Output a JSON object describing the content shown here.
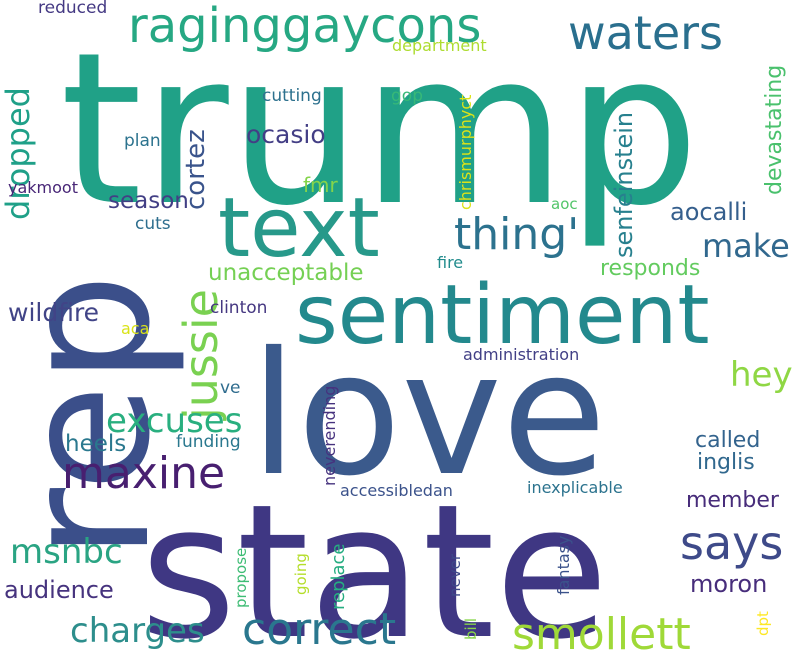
{
  "words": [
    {
      "id": "trump",
      "text": "trump",
      "color": "#20a187"
    },
    {
      "id": "love",
      "text": "love",
      "color": "#3b5a8c"
    },
    {
      "id": "state",
      "text": "state",
      "color": "#3f3783"
    },
    {
      "id": "rep",
      "text": "rep",
      "color": "#3b4f8a"
    },
    {
      "id": "sentiment",
      "text": "sentiment",
      "color": "#23898d"
    },
    {
      "id": "text",
      "text": "text",
      "color": "#27998a"
    },
    {
      "id": "raginggaycons",
      "text": "raginggaycons",
      "color": "#26a883"
    },
    {
      "id": "waters",
      "text": "waters",
      "color": "#2a6f8e"
    },
    {
      "id": "smollett",
      "text": "smollett",
      "color": "#9fd938"
    },
    {
      "id": "correct",
      "text": "correct",
      "color": "#2a778e"
    },
    {
      "id": "says",
      "text": "says",
      "color": "#3e4a89"
    },
    {
      "id": "maxine",
      "text": "maxine",
      "color": "#481f70"
    },
    {
      "id": "jussie",
      "text": "jussie",
      "color": "#7ad151"
    },
    {
      "id": "thing",
      "text": "thing'",
      "color": "#2c728e"
    },
    {
      "id": "dropped",
      "text": "dropped",
      "color": "#1fa088"
    },
    {
      "id": "excuses",
      "text": "excuses",
      "color": "#29af7f"
    },
    {
      "id": "charges",
      "text": "charges",
      "color": "#2d8e8c"
    },
    {
      "id": "msnbc",
      "text": "msnbc",
      "color": "#2aa483"
    },
    {
      "id": "make",
      "text": "make",
      "color": "#31688e"
    },
    {
      "id": "hey",
      "text": "hey",
      "color": "#8fd744"
    },
    {
      "id": "senfeinstein",
      "text": "senfeinstein",
      "color": "#27808e"
    },
    {
      "id": "cortez",
      "text": "cortez",
      "color": "#3a548c"
    },
    {
      "id": "devastating",
      "text": "devastating",
      "color": "#4ac16d"
    },
    {
      "id": "ocasio",
      "text": "ocasio",
      "color": "#433e85"
    },
    {
      "id": "aocalli",
      "text": "aocalli",
      "color": "#355f8d"
    },
    {
      "id": "unacceptable",
      "text": "unacceptable",
      "color": "#75d054"
    },
    {
      "id": "wildfire",
      "text": "wildfire",
      "color": "#414487"
    },
    {
      "id": "audience",
      "text": "audience",
      "color": "#46337e"
    },
    {
      "id": "moron",
      "text": "moron",
      "color": "#472d7b"
    },
    {
      "id": "called",
      "text": "called",
      "color": "#33638d"
    },
    {
      "id": "inglis",
      "text": "inglis",
      "color": "#31688e"
    },
    {
      "id": "member",
      "text": "member",
      "color": "#472c7a"
    },
    {
      "id": "responds",
      "text": "responds",
      "color": "#63cb5f"
    },
    {
      "id": "heels",
      "text": "heels",
      "color": "#2a788e"
    },
    {
      "id": "season",
      "text": "season",
      "color": "#423f85"
    },
    {
      "id": "fmr",
      "text": "fmr",
      "color": "#84d44b"
    },
    {
      "id": "yakmoot",
      "text": "yakmoot",
      "color": "#482677"
    },
    {
      "id": "cutting",
      "text": "cutting",
      "color": "#2d718e"
    },
    {
      "id": "gop",
      "text": "gop",
      "color": "#37b878"
    },
    {
      "id": "plan",
      "text": "plan",
      "color": "#2c738e"
    },
    {
      "id": "reduced",
      "text": "reduced",
      "color": "#443983"
    },
    {
      "id": "department",
      "text": "department",
      "color": "#addc30"
    },
    {
      "id": "chrismurphyct",
      "text": "chrismurphyct",
      "color": "#dde318"
    },
    {
      "id": "aoc",
      "text": "aoc",
      "color": "#52c569"
    },
    {
      "id": "cuts",
      "text": "cuts",
      "color": "#2e6e8e"
    },
    {
      "id": "fire",
      "text": "fire",
      "color": "#228c8d"
    },
    {
      "id": "clinton",
      "text": "clinton",
      "color": "#453781"
    },
    {
      "id": "aca",
      "text": "aca",
      "color": "#dae319"
    },
    {
      "id": "administration",
      "text": "administration",
      "color": "#424086"
    },
    {
      "id": "ve",
      "text": "ve",
      "color": "#2f6c8e"
    },
    {
      "id": "funding",
      "text": "funding",
      "color": "#2a788e"
    },
    {
      "id": "replace",
      "text": "replace",
      "color": "#26ad81"
    },
    {
      "id": "neverending",
      "text": "neverending",
      "color": "#46327e"
    },
    {
      "id": "accessibledan",
      "text": "accessibledan",
      "color": "#3b528b"
    },
    {
      "id": "inexplicable",
      "text": "inexplicable",
      "color": "#2c738e"
    },
    {
      "id": "propose",
      "text": "propose",
      "color": "#3dbc74"
    },
    {
      "id": "going",
      "text": "going",
      "color": "#b5de2b"
    },
    {
      "id": "never",
      "text": "never",
      "color": "#3e4989"
    },
    {
      "id": "bill",
      "text": "bill",
      "color": "#86d549"
    },
    {
      "id": "fantasy",
      "text": "fantasy",
      "color": "#3b528b"
    },
    {
      "id": "dpt",
      "text": "dpt",
      "color": "#fde725"
    }
  ]
}
